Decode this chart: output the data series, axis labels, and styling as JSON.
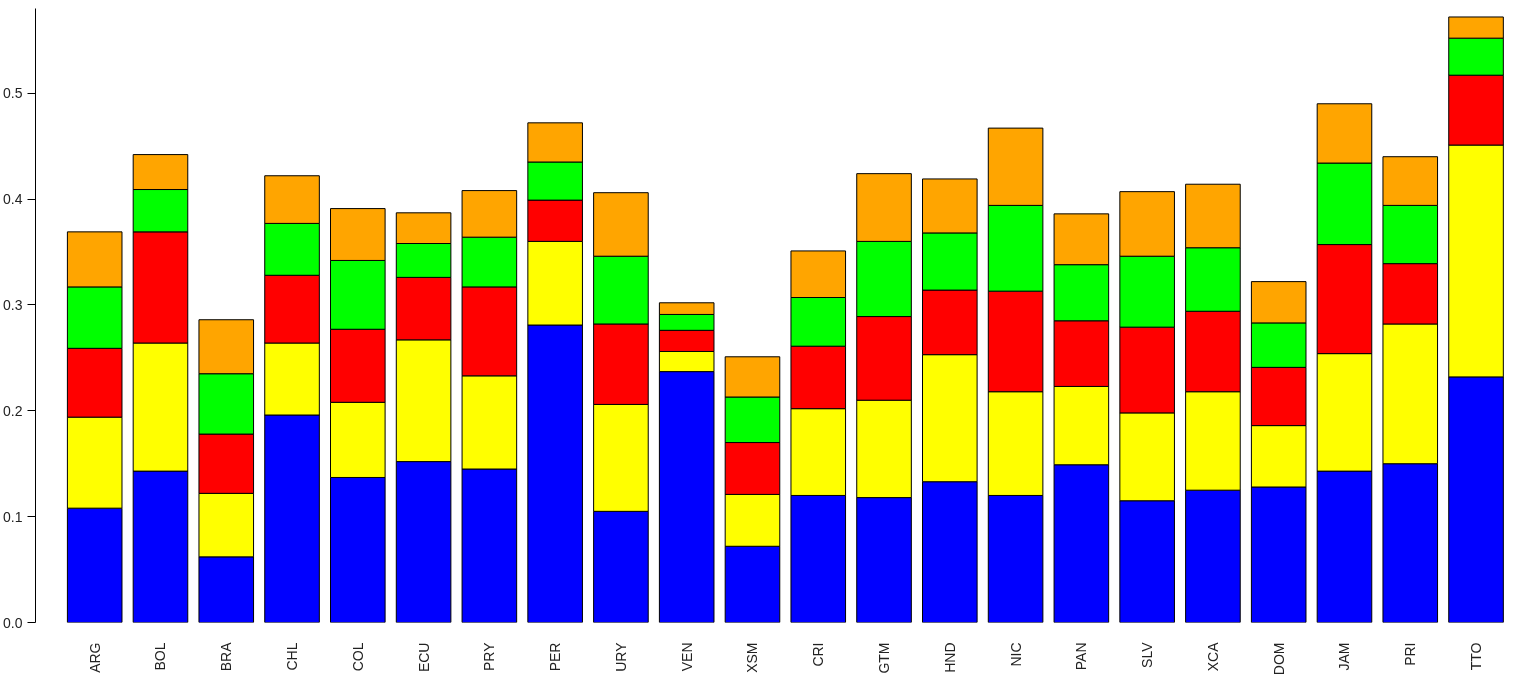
{
  "chart_data": {
    "type": "bar",
    "stacked": true,
    "grid": false,
    "categories": [
      "ARG",
      "BOL",
      "BRA",
      "CHL",
      "COL",
      "ECU",
      "PRY",
      "PER",
      "URY",
      "VEN",
      "XSM",
      "CRI",
      "GTM",
      "HND",
      "NIC",
      "PAN",
      "SLV",
      "XCA",
      "DOM",
      "JAM",
      "PRI",
      "TTO"
    ],
    "ylim": [
      0,
      0.58
    ],
    "yticks": [
      {
        "value": 0,
        "label": "0.0"
      },
      0.1,
      0.2,
      0.3,
      0.4,
      0.5
    ],
    "series": [
      {
        "color": "#0000ff",
        "values": [
          0.108,
          0.143,
          0.062,
          0.196,
          0.137,
          0.152,
          0.145,
          0.281,
          0.105,
          0.237,
          0.072,
          0.12,
          0.118,
          0.133,
          0.12,
          0.149,
          0.115,
          0.125,
          0.128,
          0.143,
          0.15,
          0.232
        ]
      },
      {
        "color": "#ffff00",
        "values": [
          0.086,
          0.121,
          0.06,
          0.068,
          0.071,
          0.115,
          0.088,
          0.079,
          0.101,
          0.019,
          0.049,
          0.082,
          0.092,
          0.12,
          0.098,
          0.074,
          0.083,
          0.093,
          0.058,
          0.111,
          0.132,
          0.219
        ]
      },
      {
        "color": "#ff0000",
        "values": [
          0.065,
          0.105,
          0.056,
          0.064,
          0.069,
          0.059,
          0.084,
          0.039,
          0.076,
          0.02,
          0.049,
          0.059,
          0.079,
          0.061,
          0.095,
          0.062,
          0.081,
          0.076,
          0.055,
          0.103,
          0.057,
          0.066
        ]
      },
      {
        "color": "#00ff00",
        "values": [
          0.058,
          0.04,
          0.057,
          0.049,
          0.065,
          0.032,
          0.047,
          0.036,
          0.064,
          0.015,
          0.043,
          0.046,
          0.071,
          0.054,
          0.081,
          0.053,
          0.067,
          0.06,
          0.042,
          0.077,
          0.055,
          0.035
        ]
      },
      {
        "color": "#ffa500",
        "values": [
          0.052,
          0.033,
          0.051,
          0.045,
          0.049,
          0.029,
          0.044,
          0.037,
          0.06,
          0.011,
          0.038,
          0.044,
          0.064,
          0.051,
          0.073,
          0.048,
          0.061,
          0.06,
          0.039,
          0.056,
          0.046,
          0.02
        ]
      }
    ]
  }
}
